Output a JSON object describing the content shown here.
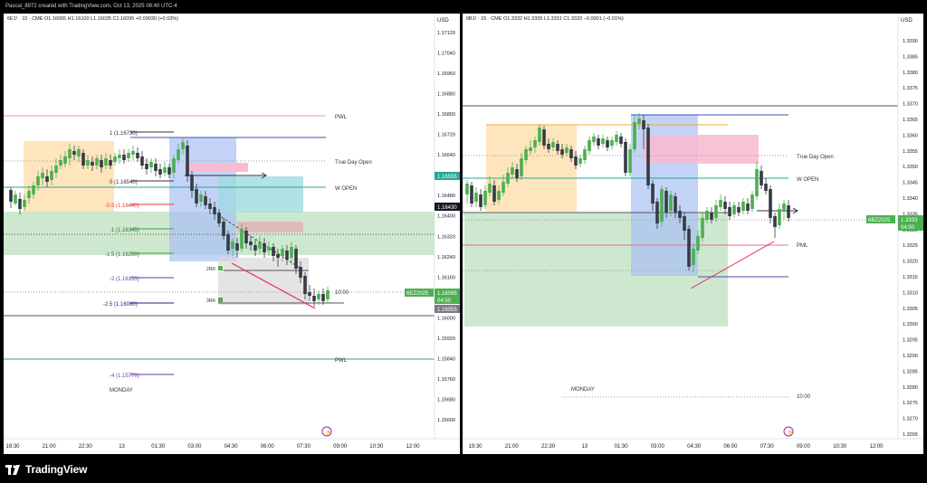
{
  "header": {
    "title": "Pascal_8972 created with TradingView.com, Oct 13, 2025 08:40 UTC-4"
  },
  "brand": {
    "name": "TradingView"
  },
  "left": {
    "legend": "6E1! · 15 · CME  O1.16065  H1.16100  L1.16035  C1.16095  +0.00030 (+0.03%)",
    "currency": "USD",
    "y_ticks": [
      "1.17120",
      "1.17040",
      "1.16960",
      "1.16880",
      "1.16800",
      "1.16720",
      "1.16640",
      "1.16560",
      "1.16480",
      "1.16400",
      "1.16320",
      "1.16240",
      "1.16160",
      "1.16080",
      "1.16000",
      "1.15920",
      "1.15840",
      "1.15760",
      "1.15680",
      "1.15600"
    ],
    "x_ticks": [
      "19:30",
      "21:00",
      "22:30",
      "13",
      "01:30",
      "03:00",
      "04:30",
      "06:00",
      "07:30",
      "09:00",
      "10:30",
      "12:00"
    ],
    "price_tags": {
      "wopen": "1.16555",
      "level": "1.16430",
      "symbol": "6EZ2025",
      "price": "1.16095",
      "countdown": "04:50",
      "low": "1.16055"
    },
    "fib": [
      "1 (1.16730)",
      "0 (1.16540)",
      "-0.5 (1.16440)",
      "-1 (1.16345)",
      "-1.5 (1.16250)",
      "-2 (1.16155)",
      "-2.5 (1.16060)",
      "-4 (1.15770)"
    ],
    "labels": {
      "pwl_top": "PWL",
      "tdo": "True Day Open",
      "wopen": "W OPEN",
      "time": "10:00",
      "pwl_bottom": "PWL",
      "monday": "MONDAY",
      "rr1": "2RR",
      "rr2": "3RR"
    }
  },
  "right": {
    "legend": "6B1! · 15 · CME  O1.3332  H1.3335  L1.3331  C1.3333  −0.0001 (−0.01%)",
    "currency": "USD",
    "y_ticks": [
      "1.3390",
      "1.3385",
      "1.3380",
      "1.3375",
      "1.3370",
      "1.3365",
      "1.3360",
      "1.3355",
      "1.3350",
      "1.3345",
      "1.3340",
      "1.3335",
      "1.3330",
      "1.3325",
      "1.3320",
      "1.3315",
      "1.3310",
      "1.3305",
      "1.3300",
      "1.3295",
      "1.3290",
      "1.3285",
      "1.3280",
      "1.3275",
      "1.3270",
      "1.3265"
    ],
    "x_ticks": [
      "19:30",
      "21:00",
      "22:30",
      "13",
      "01:30",
      "03:00",
      "04:30",
      "06:00",
      "07:30",
      "09:00",
      "10:30",
      "12:00"
    ],
    "price_tags": {
      "symbol": "6BZ2025",
      "price": "1.3333",
      "countdown": "04:50"
    },
    "labels": {
      "tdo": "True Day Open",
      "wopen": "W OPEN",
      "pml": "PML",
      "monday": "MONDAY",
      "time": "10:00"
    }
  },
  "colors": {
    "bull": "#4caf50",
    "bear": "#363a45",
    "long_zone": "#c8e6c9",
    "short_zone": "#e0e0e0",
    "asia": "#ffe0b2",
    "blue_box": "#bbcdf5"
  }
}
